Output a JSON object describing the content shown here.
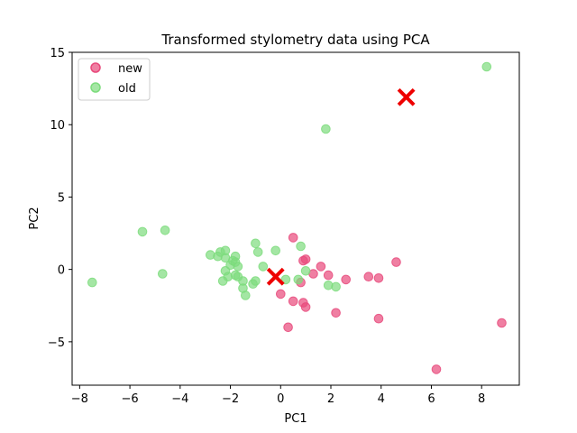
{
  "chart_data": {
    "type": "scatter",
    "title": "Transformed stylometry data using PCA",
    "xlabel": "PC1",
    "ylabel": "PC2",
    "xlim": [
      -8.3,
      9.5
    ],
    "ylim": [
      -8,
      15
    ],
    "xticks": [
      -8,
      -6,
      -4,
      -2,
      0,
      2,
      4,
      6,
      8
    ],
    "yticks": [
      -5,
      0,
      5,
      10,
      15
    ],
    "grid": false,
    "legend_position": "top-left",
    "series": [
      {
        "name": "new",
        "color": "#e8497b",
        "points": [
          [
            0.5,
            2.2
          ],
          [
            0.9,
            0.6
          ],
          [
            1.0,
            0.7
          ],
          [
            0.8,
            -0.9
          ],
          [
            1.6,
            0.2
          ],
          [
            1.3,
            -0.3
          ],
          [
            1.9,
            -0.4
          ],
          [
            2.6,
            -0.7
          ],
          [
            3.5,
            -0.5
          ],
          [
            3.9,
            -0.6
          ],
          [
            4.6,
            0.5
          ],
          [
            0.0,
            -1.7
          ],
          [
            0.5,
            -2.2
          ],
          [
            0.9,
            -2.3
          ],
          [
            1.0,
            -2.6
          ],
          [
            2.2,
            -3.0
          ],
          [
            3.9,
            -3.4
          ],
          [
            0.3,
            -4.0
          ],
          [
            6.2,
            -6.9
          ],
          [
            8.8,
            -3.7
          ]
        ]
      },
      {
        "name": "old",
        "color": "#7ddc7d",
        "points": [
          [
            -7.5,
            -0.9
          ],
          [
            -5.5,
            2.6
          ],
          [
            -4.6,
            2.7
          ],
          [
            -4.7,
            -0.3
          ],
          [
            -2.8,
            1.0
          ],
          [
            -2.5,
            0.9
          ],
          [
            -2.4,
            1.2
          ],
          [
            -2.2,
            1.3
          ],
          [
            -2.2,
            0.8
          ],
          [
            -2.0,
            0.3
          ],
          [
            -1.9,
            0.6
          ],
          [
            -1.8,
            0.5
          ],
          [
            -1.8,
            0.9
          ],
          [
            -1.7,
            0.2
          ],
          [
            -2.2,
            -0.1
          ],
          [
            -2.1,
            -0.5
          ],
          [
            -2.3,
            -0.8
          ],
          [
            -1.8,
            -0.4
          ],
          [
            -1.7,
            -0.5
          ],
          [
            -1.5,
            -0.8
          ],
          [
            -1.5,
            -1.3
          ],
          [
            -1.4,
            -1.8
          ],
          [
            -1.1,
            -1.0
          ],
          [
            -1.0,
            -0.8
          ],
          [
            -1.0,
            1.8
          ],
          [
            -0.9,
            1.2
          ],
          [
            -0.7,
            0.2
          ],
          [
            -0.2,
            1.3
          ],
          [
            0.2,
            -0.7
          ],
          [
            0.8,
            1.6
          ],
          [
            1.0,
            -0.1
          ],
          [
            0.7,
            -0.7
          ],
          [
            1.9,
            -1.1
          ],
          [
            2.2,
            -1.2
          ],
          [
            1.8,
            9.7
          ],
          [
            8.2,
            14.0
          ]
        ]
      }
    ],
    "markers": [
      {
        "type": "x",
        "color": "#ee0000",
        "x": -0.2,
        "y": -0.5
      },
      {
        "type": "x",
        "color": "#ee0000",
        "x": 5.0,
        "y": 11.9
      }
    ]
  }
}
